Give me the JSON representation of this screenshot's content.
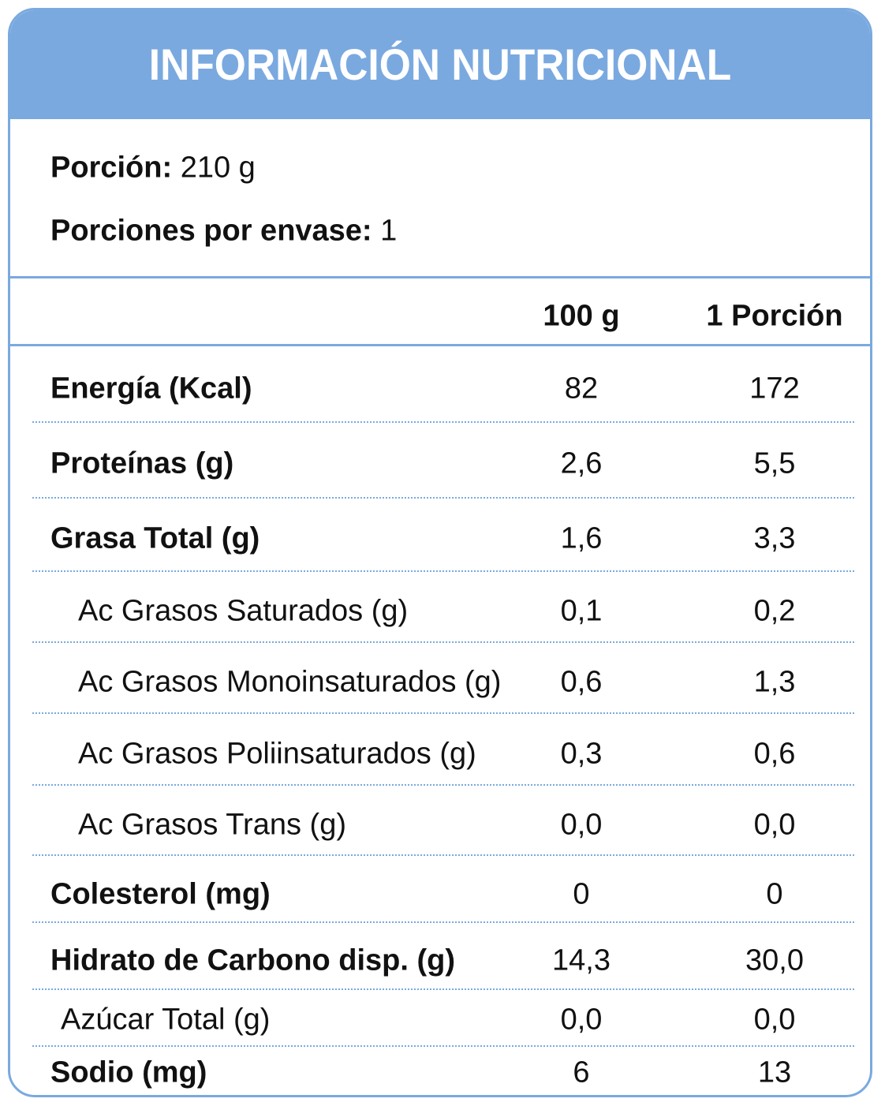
{
  "header": {
    "title": "INFORMACIÓN NUTRICIONAL"
  },
  "serving": {
    "label": "Porción:",
    "value": "210 g"
  },
  "servings": {
    "label": "Porciones por envase:",
    "value": "1"
  },
  "table": {
    "columns": [
      "100 g",
      "1 Porción"
    ],
    "rows": [
      [
        "Energía (Kcal)",
        "82",
        "172"
      ],
      [
        "Proteínas (g)",
        "2,6",
        "5,5"
      ],
      [
        "Grasa Total (g)",
        "1,6",
        "3,3"
      ],
      [
        "Ac Grasos Saturados (g)",
        "0,1",
        "0,2"
      ],
      [
        "Ac Grasos Monoinsaturados (g)",
        "0,6",
        "1,3"
      ],
      [
        "Ac Grasos Poliinsaturados (g)",
        "0,3",
        "0,6"
      ],
      [
        "Ac Grasos Trans (g)",
        "0,0",
        "0,0"
      ],
      [
        "Colesterol (mg)",
        "0",
        "0"
      ],
      [
        "Hidrato de Carbono disp. (g)",
        "14,3",
        "30,0"
      ],
      [
        "Azúcar Total (g)",
        "0,0",
        "0,0"
      ],
      [
        "Sodio (mg)",
        "6",
        "13"
      ]
    ]
  }
}
